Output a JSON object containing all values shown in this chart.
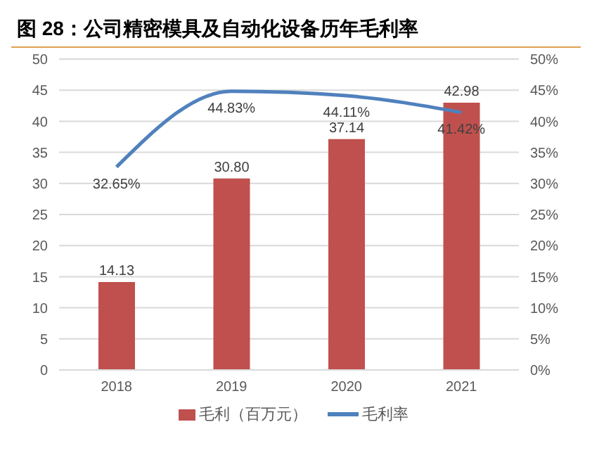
{
  "chart_data": {
    "type": "bar",
    "title": "图 28：公司精密模具及自动化设备历年毛利率",
    "categories": [
      "2018",
      "2019",
      "2020",
      "2021"
    ],
    "series": [
      {
        "name": "毛利（百万元）",
        "color": "#c0504d",
        "values": [
          14.13,
          30.8,
          37.14,
          42.98
        ],
        "value_labels": [
          "14.13",
          "30.80",
          "37.14",
          "42.98"
        ]
      },
      {
        "name": "毛利率",
        "type": "line",
        "axis": "y2",
        "color": "#4f81bd",
        "values": [
          32.65,
          44.83,
          44.11,
          41.42
        ],
        "value_labels": [
          "32.65%",
          "44.83%",
          "44.11%",
          "41.42%"
        ]
      }
    ],
    "ylim": [
      0,
      50
    ],
    "yticks": [
      0,
      5,
      10,
      15,
      20,
      25,
      30,
      35,
      40,
      45,
      50
    ],
    "y2lim": [
      0,
      50
    ],
    "y2ticks": [
      {
        "value": 0,
        "label": "0%"
      },
      {
        "value": 5,
        "label": "5%"
      },
      {
        "value": 10,
        "label": "10%"
      },
      {
        "value": 15,
        "label": "15%"
      },
      {
        "value": 20,
        "label": "20%"
      },
      {
        "value": 25,
        "label": "25%"
      },
      {
        "value": 30,
        "label": "30%"
      },
      {
        "value": 35,
        "label": "35%"
      },
      {
        "value": 40,
        "label": "40%"
      },
      {
        "value": 45,
        "label": "45%"
      },
      {
        "value": 50,
        "label": "50%"
      }
    ],
    "grid": "y",
    "legend": "bottom",
    "marker": "none"
  }
}
